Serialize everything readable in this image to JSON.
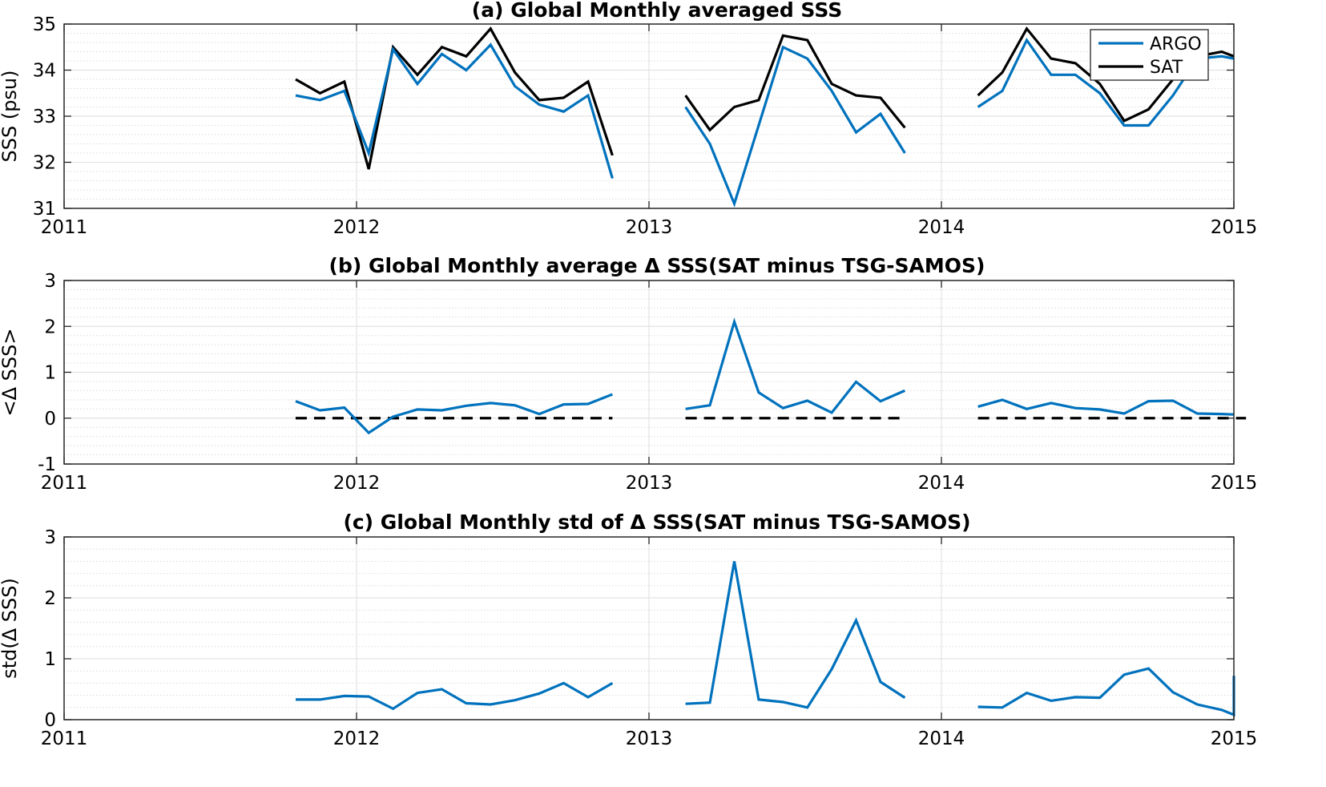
{
  "chart_data": [
    {
      "type": "line",
      "title": "(a) Global Monthly averaged SSS",
      "xlabel": "",
      "ylabel": "SSS (psu)",
      "xlim": [
        2011,
        2015
      ],
      "ylim": [
        31,
        35
      ],
      "xticks": [
        "2011",
        "2012",
        "2013",
        "2014",
        "2015"
      ],
      "yticks": [
        "31",
        "32",
        "33",
        "34",
        "35"
      ],
      "grid": true,
      "minor_grid": true,
      "legend": [
        "ARGO",
        "SAT"
      ],
      "legend_position": "top-right",
      "series": [
        {
          "name": "ARGO",
          "color": "#0072BD",
          "segments": [
            {
              "x": [
                "2011-10",
                "2011-11",
                "2011-12",
                "2012-01",
                "2012-02",
                "2012-03",
                "2012-04",
                "2012-05",
                "2012-06",
                "2012-07",
                "2012-08",
                "2012-09",
                "2012-10",
                "2012-11"
              ],
              "y": [
                33.45,
                33.35,
                33.55,
                32.2,
                34.45,
                33.7,
                34.35,
                34.0,
                34.55,
                33.65,
                33.25,
                33.1,
                33.45,
                31.65
              ]
            },
            {
              "x": [
                "2013-02",
                "2013-03",
                "2013-04",
                "2013-05",
                "2013-06",
                "2013-07",
                "2013-08",
                "2013-09",
                "2013-10",
                "2013-11"
              ],
              "y": [
                33.2,
                32.4,
                31.1,
                32.8,
                34.5,
                34.25,
                33.55,
                32.65,
                33.05,
                32.2
              ]
            },
            {
              "x": [
                "2014-02",
                "2014-03",
                "2014-04",
                "2014-05",
                "2014-06",
                "2014-07",
                "2014-08",
                "2014-09",
                "2014-10",
                "2014-11",
                "2014-12",
                "2015-01"
              ],
              "y": [
                33.2,
                33.55,
                34.65,
                33.9,
                33.9,
                33.5,
                32.8,
                32.8,
                33.45,
                34.25,
                34.3,
                34.25
              ]
            }
          ]
        },
        {
          "name": "SAT",
          "color": "#000000",
          "segments": [
            {
              "x": [
                "2011-10",
                "2011-11",
                "2011-12",
                "2012-01",
                "2012-02",
                "2012-03",
                "2012-04",
                "2012-05",
                "2012-06",
                "2012-07",
                "2012-08",
                "2012-09",
                "2012-10",
                "2012-11"
              ],
              "y": [
                33.8,
                33.5,
                33.75,
                31.85,
                34.5,
                33.9,
                34.5,
                34.3,
                34.9,
                33.95,
                33.35,
                33.4,
                33.75,
                32.15
              ]
            },
            {
              "x": [
                "2013-02",
                "2013-03",
                "2013-04",
                "2013-05",
                "2013-06",
                "2013-07",
                "2013-08",
                "2013-09",
                "2013-10",
                "2013-11"
              ],
              "y": [
                33.45,
                32.7,
                33.2,
                33.35,
                34.75,
                34.65,
                33.7,
                33.45,
                33.4,
                32.75
              ]
            },
            {
              "x": [
                "2014-02",
                "2014-03",
                "2014-04",
                "2014-05",
                "2014-06",
                "2014-07",
                "2014-08",
                "2014-09",
                "2014-10",
                "2014-11",
                "2014-12",
                "2015-01"
              ],
              "y": [
                33.45,
                33.95,
                34.9,
                34.25,
                34.15,
                33.7,
                32.9,
                33.15,
                33.8,
                34.3,
                34.4,
                34.3
              ]
            }
          ]
        }
      ]
    },
    {
      "type": "line",
      "title": "(b) Global Monthly average Δ SSS(SAT minus TSG-SAMOS)",
      "xlabel": "",
      "ylabel": "<Δ SSS>",
      "xlim": [
        2011,
        2015
      ],
      "ylim": [
        -1,
        3
      ],
      "xticks": [
        "2011",
        "2012",
        "2013",
        "2014",
        "2015"
      ],
      "yticks": [
        "-1",
        "0",
        "1",
        "2",
        "3"
      ],
      "grid": true,
      "minor_grid": true,
      "zero_line": {
        "y": 0,
        "style": "dashed",
        "color": "#000000",
        "spans": [
          [
            "2011-10",
            "2012-11"
          ],
          [
            "2013-02",
            "2013-11"
          ],
          [
            "2014-02",
            "2015-01"
          ]
        ]
      },
      "series": [
        {
          "color": "#0072BD",
          "segments": [
            {
              "x": [
                "2011-10",
                "2011-11",
                "2011-12",
                "2012-01",
                "2012-02",
                "2012-03",
                "2012-04",
                "2012-05",
                "2012-06",
                "2012-07",
                "2012-08",
                "2012-09",
                "2012-10",
                "2012-11"
              ],
              "y": [
                0.37,
                0.17,
                0.23,
                -0.32,
                0.03,
                0.19,
                0.17,
                0.27,
                0.33,
                0.28,
                0.09,
                0.3,
                0.31,
                0.52
              ]
            },
            {
              "x": [
                "2013-02",
                "2013-03",
                "2013-04",
                "2013-05",
                "2013-06",
                "2013-07",
                "2013-08",
                "2013-09",
                "2013-10",
                "2013-11"
              ],
              "y": [
                0.2,
                0.28,
                2.1,
                0.56,
                0.22,
                0.38,
                0.12,
                0.79,
                0.37,
                0.6
              ]
            },
            {
              "x": [
                "2014-02",
                "2014-03",
                "2014-04",
                "2014-05",
                "2014-06",
                "2014-07",
                "2014-08",
                "2014-09",
                "2014-10",
                "2014-11",
                "2014-12",
                "2015-01"
              ],
              "y": [
                0.25,
                0.4,
                0.2,
                0.33,
                0.22,
                0.19,
                0.1,
                0.37,
                0.38,
                0.1,
                0.09,
                0.08
              ]
            }
          ]
        }
      ]
    },
    {
      "type": "line",
      "title": "(c) Global Monthly std of Δ SSS(SAT minus TSG-SAMOS)",
      "xlabel": "",
      "ylabel": "std(Δ SSS)",
      "xlim": [
        2011,
        2015
      ],
      "ylim": [
        0,
        3
      ],
      "xticks": [
        "2011",
        "2012",
        "2013",
        "2014",
        "2015"
      ],
      "yticks": [
        "0",
        "1",
        "2",
        "3"
      ],
      "grid": true,
      "minor_grid": true,
      "series": [
        {
          "color": "#0072BD",
          "segments": [
            {
              "x": [
                "2011-10",
                "2011-11",
                "2011-12",
                "2012-01",
                "2012-02",
                "2012-03",
                "2012-04",
                "2012-05",
                "2012-06",
                "2012-07",
                "2012-08",
                "2012-09",
                "2012-10",
                "2012-11"
              ],
              "y": [
                0.33,
                0.33,
                0.39,
                0.38,
                0.18,
                0.44,
                0.5,
                0.27,
                0.25,
                0.32,
                0.43,
                0.6,
                0.37,
                0.6
              ]
            },
            {
              "x": [
                "2013-02",
                "2013-03",
                "2013-04",
                "2013-05",
                "2013-06",
                "2013-07",
                "2013-08",
                "2013-09",
                "2013-10",
                "2013-11"
              ],
              "y": [
                0.26,
                0.28,
                2.6,
                0.33,
                0.29,
                0.2,
                0.83,
                1.63,
                0.62,
                0.36
              ]
            },
            {
              "x": [
                "2014-02",
                "2014-03",
                "2014-04",
                "2014-05",
                "2014-06",
                "2014-07",
                "2014-08",
                "2014-09",
                "2014-10",
                "2014-11",
                "2014-12",
                "2015-01",
                "2015-02"
              ],
              "y": [
                0.21,
                0.2,
                0.44,
                0.31,
                0.37,
                0.36,
                0.74,
                0.84,
                0.45,
                0.25,
                0.16,
                0.08,
                0.72
              ]
            }
          ]
        }
      ]
    }
  ]
}
